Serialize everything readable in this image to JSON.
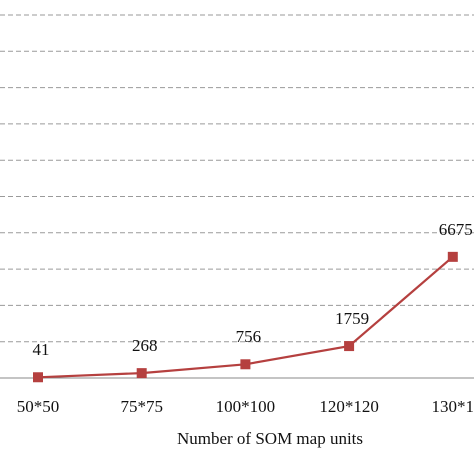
{
  "chart_data": {
    "type": "line",
    "x_label": "Number of SOM map units",
    "categories": [
      "50*50",
      "75*75",
      "100*100",
      "120*120",
      "130*1"
    ],
    "series": [
      {
        "name": null,
        "color": "#b5403f",
        "values": [
          41,
          268,
          756,
          1759,
          6675
        ]
      }
    ],
    "ylim": [
      0,
      20000
    ],
    "yticks": [
      0,
      2000,
      4000,
      6000,
      8000,
      10000,
      12000,
      14000,
      16000,
      18000,
      20000
    ],
    "grid": true
  }
}
